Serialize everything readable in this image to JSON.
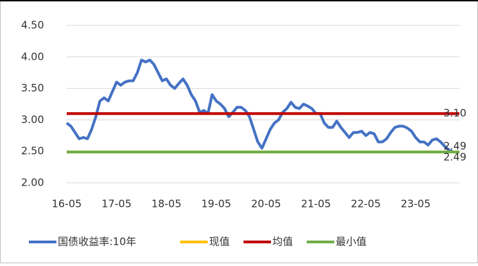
{
  "chart_data": {
    "type": "line",
    "categories": [
      "16-05",
      null,
      null,
      null,
      null,
      null,
      null,
      null,
      null,
      null,
      null,
      null,
      "17-05",
      null,
      null,
      null,
      null,
      null,
      null,
      null,
      null,
      null,
      null,
      null,
      "18-05",
      null,
      null,
      null,
      null,
      null,
      null,
      null,
      null,
      null,
      null,
      null,
      "19-05",
      null,
      null,
      null,
      null,
      null,
      null,
      null,
      null,
      null,
      null,
      null,
      "20-05",
      null,
      null,
      null,
      null,
      null,
      null,
      null,
      null,
      null,
      null,
      null,
      "21-05",
      null,
      null,
      null,
      null,
      null,
      null,
      null,
      null,
      null,
      null,
      null,
      "22-05",
      null,
      null,
      null,
      null,
      null,
      null,
      null,
      null,
      null,
      null,
      null,
      "23-05",
      null,
      null,
      null,
      null,
      null,
      null,
      null,
      null,
      null
    ],
    "series": [
      {
        "name": "国债收益率:10年",
        "color": "#4472c4",
        "values": [
          2.95,
          2.9,
          2.8,
          2.7,
          2.72,
          2.7,
          2.85,
          3.05,
          3.3,
          3.35,
          3.3,
          3.45,
          3.6,
          3.55,
          3.6,
          3.62,
          3.62,
          3.75,
          3.95,
          3.92,
          3.95,
          3.88,
          3.75,
          3.62,
          3.65,
          3.55,
          3.5,
          3.58,
          3.65,
          3.55,
          3.4,
          3.3,
          3.12,
          3.15,
          3.1,
          3.4,
          3.3,
          3.25,
          3.18,
          3.05,
          3.12,
          3.2,
          3.2,
          3.15,
          3.05,
          2.85,
          2.65,
          2.55,
          2.7,
          2.85,
          2.95,
          3.0,
          3.12,
          3.18,
          3.28,
          3.2,
          3.18,
          3.25,
          3.22,
          3.18,
          3.1,
          3.1,
          2.95,
          2.88,
          2.88,
          2.98,
          2.88,
          2.8,
          2.72,
          2.8,
          2.8,
          2.82,
          2.75,
          2.8,
          2.78,
          2.65,
          2.65,
          2.7,
          2.8,
          2.88,
          2.9,
          2.9,
          2.87,
          2.82,
          2.72,
          2.65,
          2.65,
          2.6,
          2.68,
          2.7,
          2.65,
          2.58,
          2.52,
          2.49
        ]
      }
    ],
    "hlines": [
      {
        "name": "现值",
        "color": "#ffc000",
        "value": 2.49,
        "value_label": "2.49"
      },
      {
        "name": "均值",
        "color": "#c00000",
        "value": 3.1,
        "value_label": "3.10"
      },
      {
        "name": "最小值",
        "color": "#70ad47",
        "value": 2.49,
        "value_label": "2.49"
      }
    ],
    "ylim": [
      2.0,
      4.5
    ],
    "yticks": [
      {
        "value": 2.0,
        "label": "2.00"
      },
      {
        "value": 2.5,
        "label": "2.50"
      },
      {
        "value": 3.0,
        "label": "3.00"
      },
      {
        "value": 3.5,
        "label": "3.50"
      },
      {
        "value": 4.0,
        "label": "4.00"
      },
      {
        "value": 4.5,
        "label": "4.50"
      }
    ],
    "grid": true
  }
}
